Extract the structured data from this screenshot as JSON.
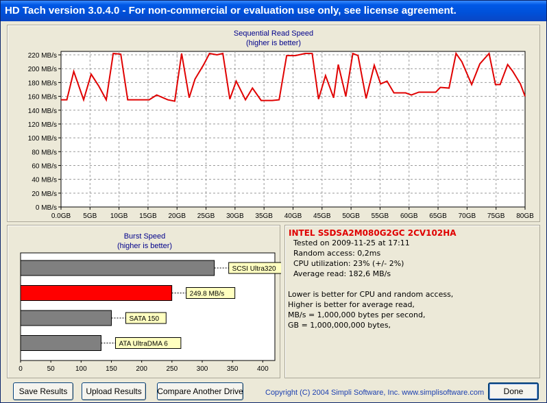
{
  "window": {
    "title": "HD Tach version 3.0.4.0  - For non-commercial or evaluation use only, see license agreement."
  },
  "chart_data": [
    {
      "type": "line",
      "title": "Sequential Read Speed",
      "subtitle": "(higher is better)",
      "xlabel": "",
      "ylabel": "",
      "x_tick_labels": [
        "0.0GB",
        "5GB",
        "10GB",
        "15GB",
        "20GB",
        "25GB",
        "30GB",
        "35GB",
        "40GB",
        "45GB",
        "50GB",
        "55GB",
        "60GB",
        "65GB",
        "70GB",
        "75GB",
        "80GB"
      ],
      "y_tick_labels": [
        "0 MB/s",
        "20 MB/s",
        "40 MB/s",
        "60 MB/s",
        "80 MB/s",
        "100 MB/s",
        "120 MB/s",
        "140 MB/s",
        "160 MB/s",
        "180 MB/s",
        "200 MB/s",
        "220 MB/s"
      ],
      "xlim": [
        0,
        80
      ],
      "ylim": [
        0,
        225
      ],
      "grid": true,
      "line_color": "#e00000",
      "series": [
        {
          "x": [
            0,
            1,
            2.2,
            3.9,
            5.2,
            6.5,
            7.8,
            9,
            10.3,
            11.5,
            15.2,
            16.5,
            18.4,
            19.6,
            20.8,
            22.1,
            23.1,
            24.6,
            25.6,
            26.9,
            27.9,
            29.1,
            30.2,
            31.8,
            33,
            34.5,
            36.4,
            37.6,
            38.9,
            40.4,
            42.1,
            43.3,
            44.4,
            45.6,
            47,
            47.8,
            49.1,
            50.3,
            51.2,
            52.6,
            54,
            55.1,
            56.2,
            57.4,
            59.4,
            60.4,
            61.7,
            63.4,
            64.6,
            65.4,
            66.9,
            68.1,
            69.1,
            70.8,
            72.2,
            73.8,
            74.9,
            75.7,
            77,
            77.9,
            79.2,
            80
          ],
          "y": [
            155,
            155,
            196,
            155,
            192,
            175,
            155,
            222,
            221,
            155,
            155,
            162,
            155,
            153,
            222,
            158,
            185,
            206,
            222,
            220,
            222,
            156,
            182,
            155,
            172,
            154,
            154,
            155,
            219,
            219,
            222,
            222,
            156,
            190,
            158,
            206,
            160,
            222,
            219,
            157,
            205,
            178,
            182,
            165,
            165,
            162,
            166,
            166,
            166,
            173,
            172,
            222,
            210,
            177,
            207,
            222,
            177,
            177,
            206,
            196,
            178,
            160
          ]
        }
      ]
    },
    {
      "type": "bar",
      "title": "Burst Speed",
      "subtitle": "(higher is better)",
      "orientation": "horizontal",
      "xlim": [
        0,
        420
      ],
      "x_tick_labels": [
        "0",
        "50",
        "100",
        "150",
        "200",
        "250",
        "300",
        "350",
        "400"
      ],
      "categories": [
        "SCSI Ultra320",
        "249.8 MB/s",
        "SATA 150",
        "ATA UltraDMA 6"
      ],
      "values": [
        320,
        249.8,
        150,
        133
      ],
      "colors": [
        "#808080",
        "#ff0000",
        "#808080",
        "#808080"
      ]
    }
  ],
  "info": {
    "drive_name": "INTEL SSDSA2M080G2GC 2CV102HA",
    "tested": "Tested on 2009-11-25 at 17:11",
    "random_access": "Random access: 0,2ms",
    "cpu": "CPU utilization: 23% (+/- 2%)",
    "avg_read": "Average read: 182,6 MB/s",
    "note1": "Lower is better for CPU and random access,",
    "note2": "Higher is better for average read,",
    "note3": "MB/s = 1,000,000 bytes per second,",
    "note4": "GB = 1,000,000,000 bytes,"
  },
  "buttons": {
    "save": "Save Results",
    "upload": "Upload Results",
    "compare": "Compare Another Drive",
    "done": "Done"
  },
  "footer": {
    "copyright": "Copyright (C) 2004 Simpli Software, Inc. www.simplisoftware.com"
  }
}
